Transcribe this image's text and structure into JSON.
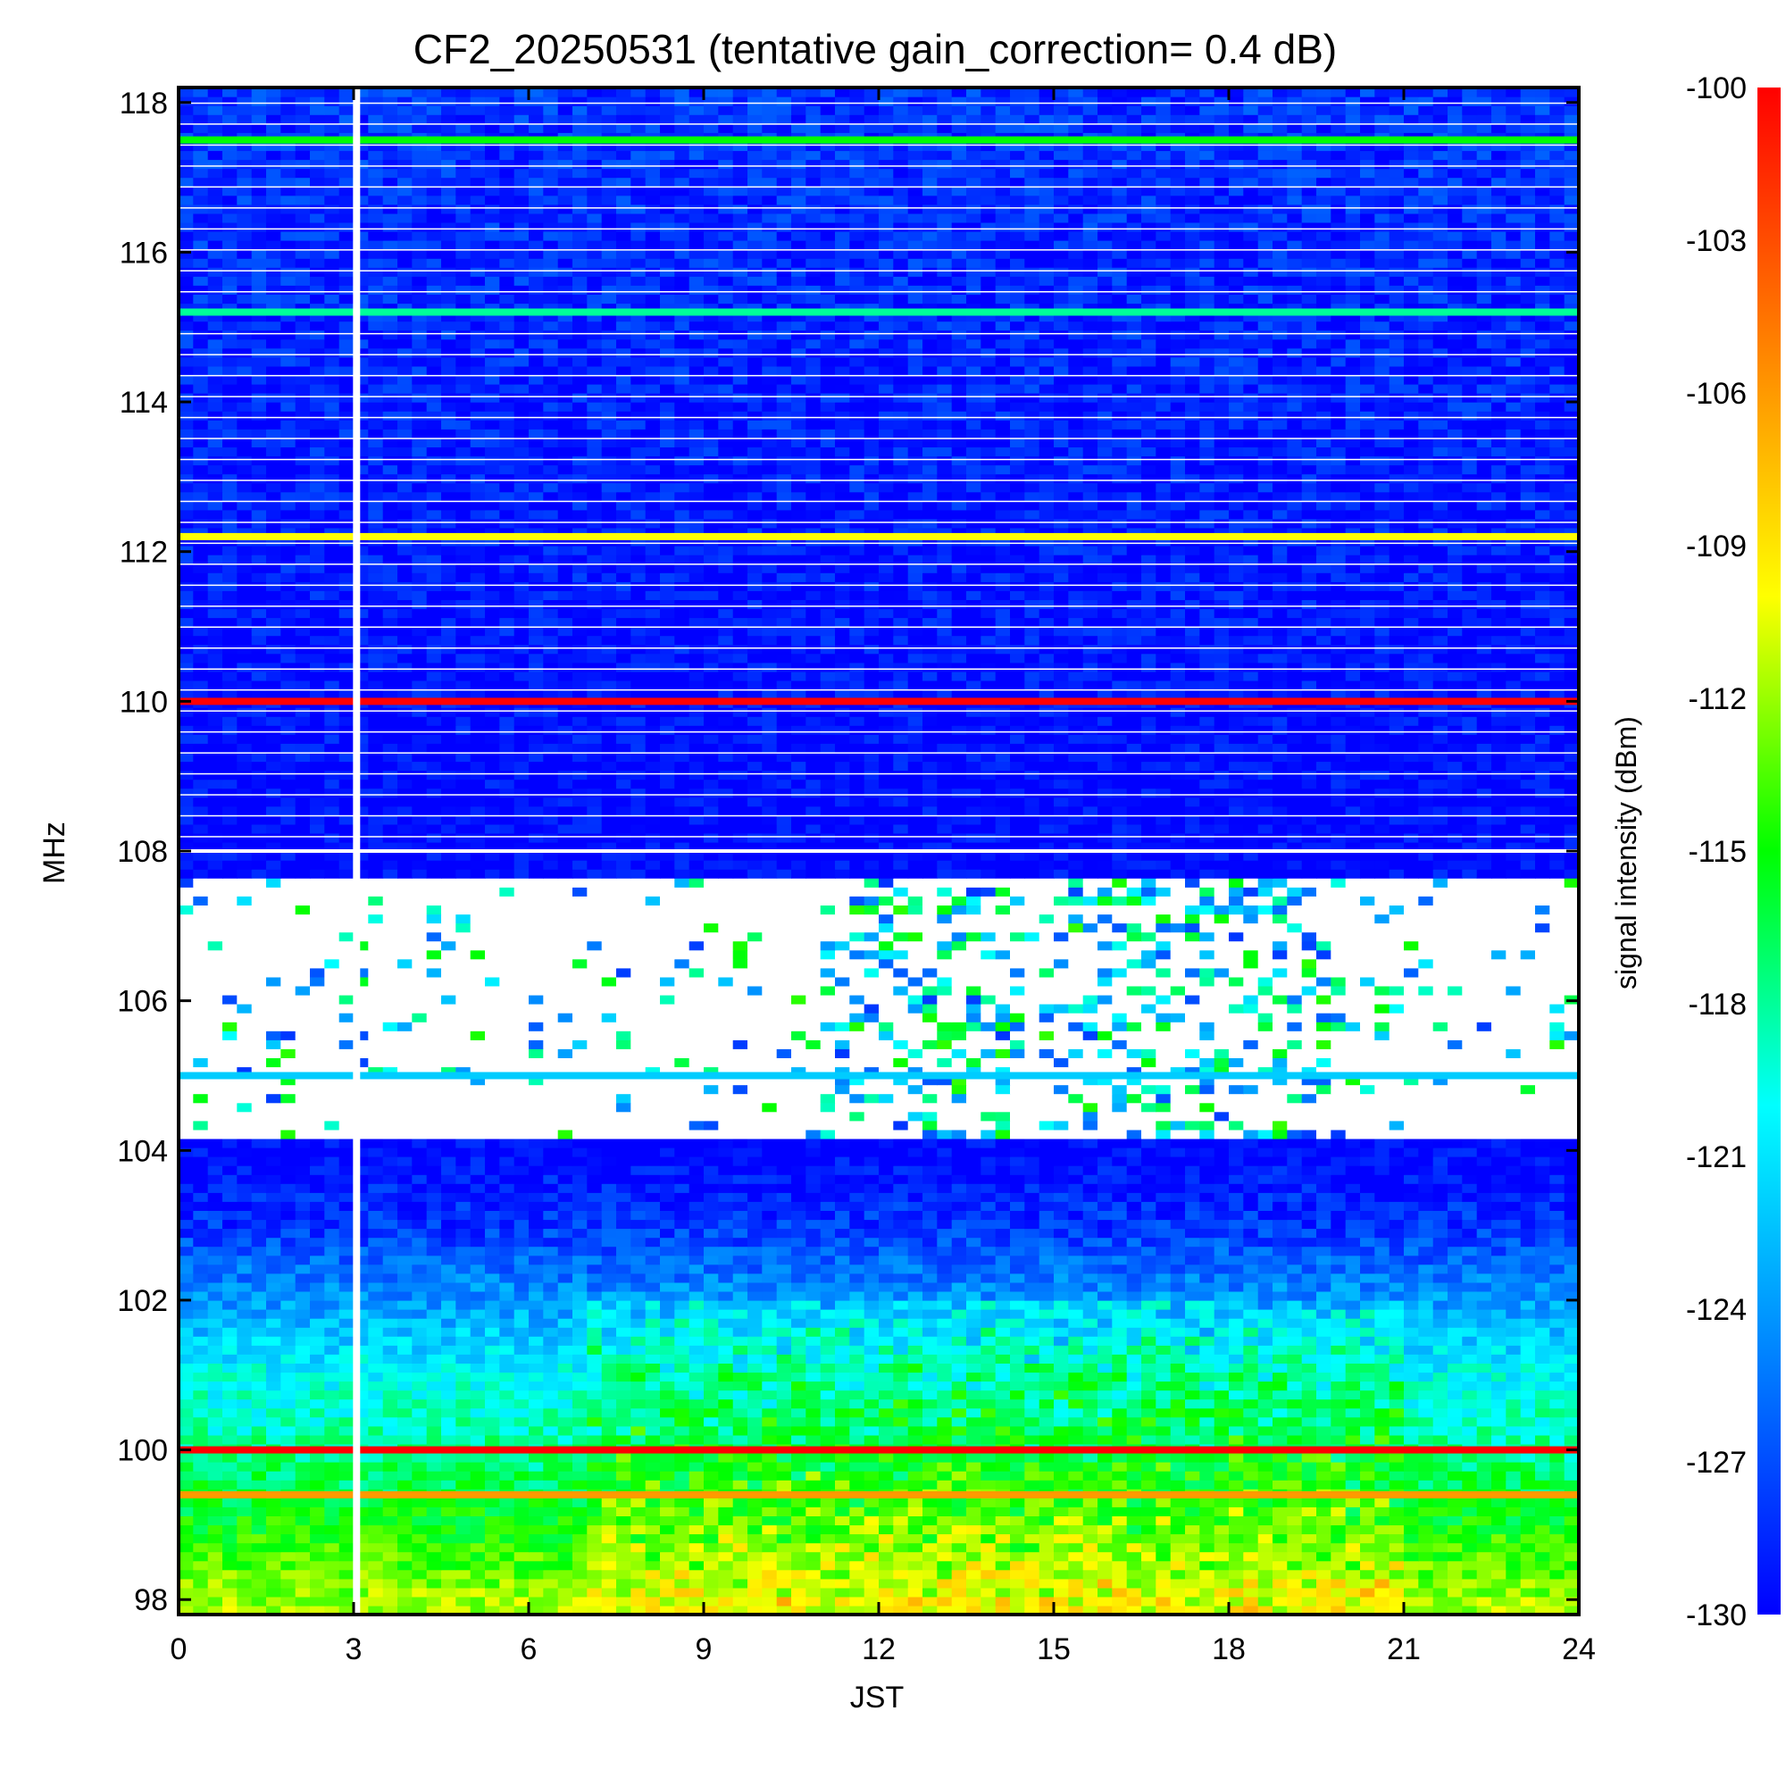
{
  "chart_data": {
    "type": "heatmap",
    "title": "CF2_20250531 (tentative gain_correction=  0.4 dB)",
    "xlabel": "JST",
    "ylabel": "MHz",
    "colorbar_label": "signal intensity (dBm)",
    "xlim": [
      0,
      24
    ],
    "ylim": [
      97.8,
      118.2
    ],
    "x_ticks": [
      "0",
      "3",
      "6",
      "9",
      "12",
      "15",
      "18",
      "21",
      "24"
    ],
    "x_tick_values": [
      0,
      3,
      6,
      9,
      12,
      15,
      18,
      21,
      24
    ],
    "y_ticks": [
      "98",
      "100",
      "102",
      "104",
      "106",
      "108",
      "110",
      "112",
      "114",
      "116",
      "118"
    ],
    "y_tick_values": [
      98,
      100,
      102,
      104,
      106,
      108,
      110,
      112,
      114,
      116,
      118
    ],
    "colorbar_range": [
      -130,
      -100
    ],
    "colorbar_ticks": [
      "-100",
      "-103",
      "-106",
      "-109",
      "-112",
      "-115",
      "-118",
      "-121",
      "-124",
      "-127",
      "-130"
    ],
    "colorbar_tick_values": [
      -100,
      -103,
      -106,
      -109,
      -112,
      -115,
      -118,
      -121,
      -124,
      -127,
      -130
    ],
    "colormap": [
      "#0000ff",
      "#0080ff",
      "#00ffff",
      "#00ff00",
      "#ffff00",
      "#ff8000",
      "#ff0000"
    ],
    "data_gap_time": 3.05,
    "strong_lines": [
      {
        "freq": 110.0,
        "dbm": -100
      },
      {
        "freq": 100.0,
        "dbm": -100
      },
      {
        "freq": 112.2,
        "dbm": -110
      },
      {
        "freq": 117.5,
        "dbm": -115
      },
      {
        "freq": 115.2,
        "dbm": -118
      },
      {
        "freq": 105.0,
        "dbm": -122
      },
      {
        "freq": 99.4,
        "dbm": -106
      }
    ],
    "background_profile": [
      {
        "freq": 98,
        "dbm": -112
      },
      {
        "freq": 99,
        "dbm": -115
      },
      {
        "freq": 100,
        "dbm": -118
      },
      {
        "freq": 101,
        "dbm": -120
      },
      {
        "freq": 102,
        "dbm": -124
      },
      {
        "freq": 103,
        "dbm": -128
      },
      {
        "freq": 104,
        "dbm": -130
      },
      {
        "freq": 108,
        "dbm": -130
      },
      {
        "freq": 118,
        "dbm": -128
      }
    ],
    "masked_band": [
      104.0,
      108.0
    ]
  }
}
